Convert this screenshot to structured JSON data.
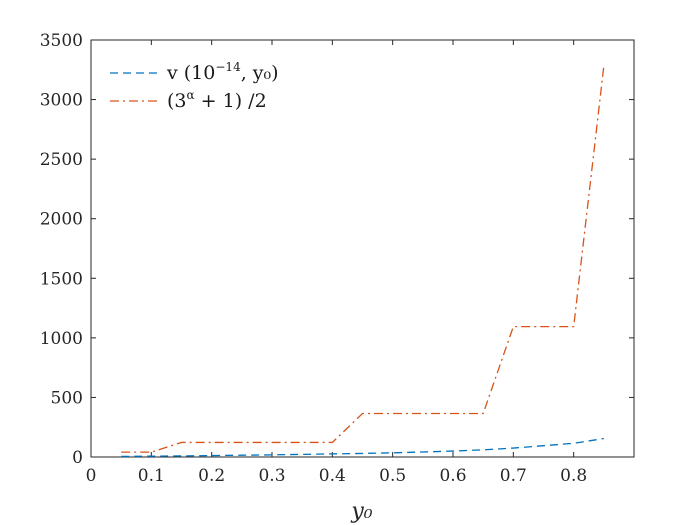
{
  "chart_data": {
    "type": "line",
    "xlabel": "y₀",
    "ylabel": "",
    "xlim": [
      0,
      0.9
    ],
    "ylim": [
      0,
      3500
    ],
    "xticks": [
      "0",
      "0.1",
      "0.2",
      "0.3",
      "0.4",
      "0.5",
      "0.6",
      "0.7",
      "0.8"
    ],
    "yticks": [
      "0",
      "500",
      "1000",
      "1500",
      "2000",
      "2500",
      "3000",
      "3500"
    ],
    "grid": false,
    "legend_position": "top-left",
    "series": [
      {
        "name": "v (10⁻¹⁴, y₀)",
        "legend_main": "v (10",
        "legend_sup": "−14",
        "legend_tail": ", y₀)",
        "color": "#0072BD",
        "dash": "dashed",
        "x": [
          0.05,
          0.1,
          0.15,
          0.2,
          0.25,
          0.3,
          0.35,
          0.4,
          0.45,
          0.5,
          0.55,
          0.6,
          0.65,
          0.7,
          0.75,
          0.8,
          0.85
        ],
        "y": [
          5,
          7,
          9,
          12,
          15,
          18,
          22,
          26,
          30,
          35,
          42,
          50,
          60,
          75,
          95,
          115,
          155
        ]
      },
      {
        "name": "(3ᵅ + 1) /2",
        "legend_main": "(3",
        "legend_sup": "α",
        "legend_tail": " + 1) /2",
        "color": "#D95319",
        "dash": "dashdot",
        "x": [
          0.05,
          0.1,
          0.15,
          0.2,
          0.25,
          0.3,
          0.35,
          0.4,
          0.45,
          0.5,
          0.55,
          0.6,
          0.65,
          0.7,
          0.75,
          0.8,
          0.85
        ],
        "y": [
          41,
          41,
          122,
          122,
          122,
          122,
          122,
          122,
          365,
          365,
          365,
          365,
          365,
          1094,
          1094,
          1094,
          3281
        ]
      }
    ]
  }
}
